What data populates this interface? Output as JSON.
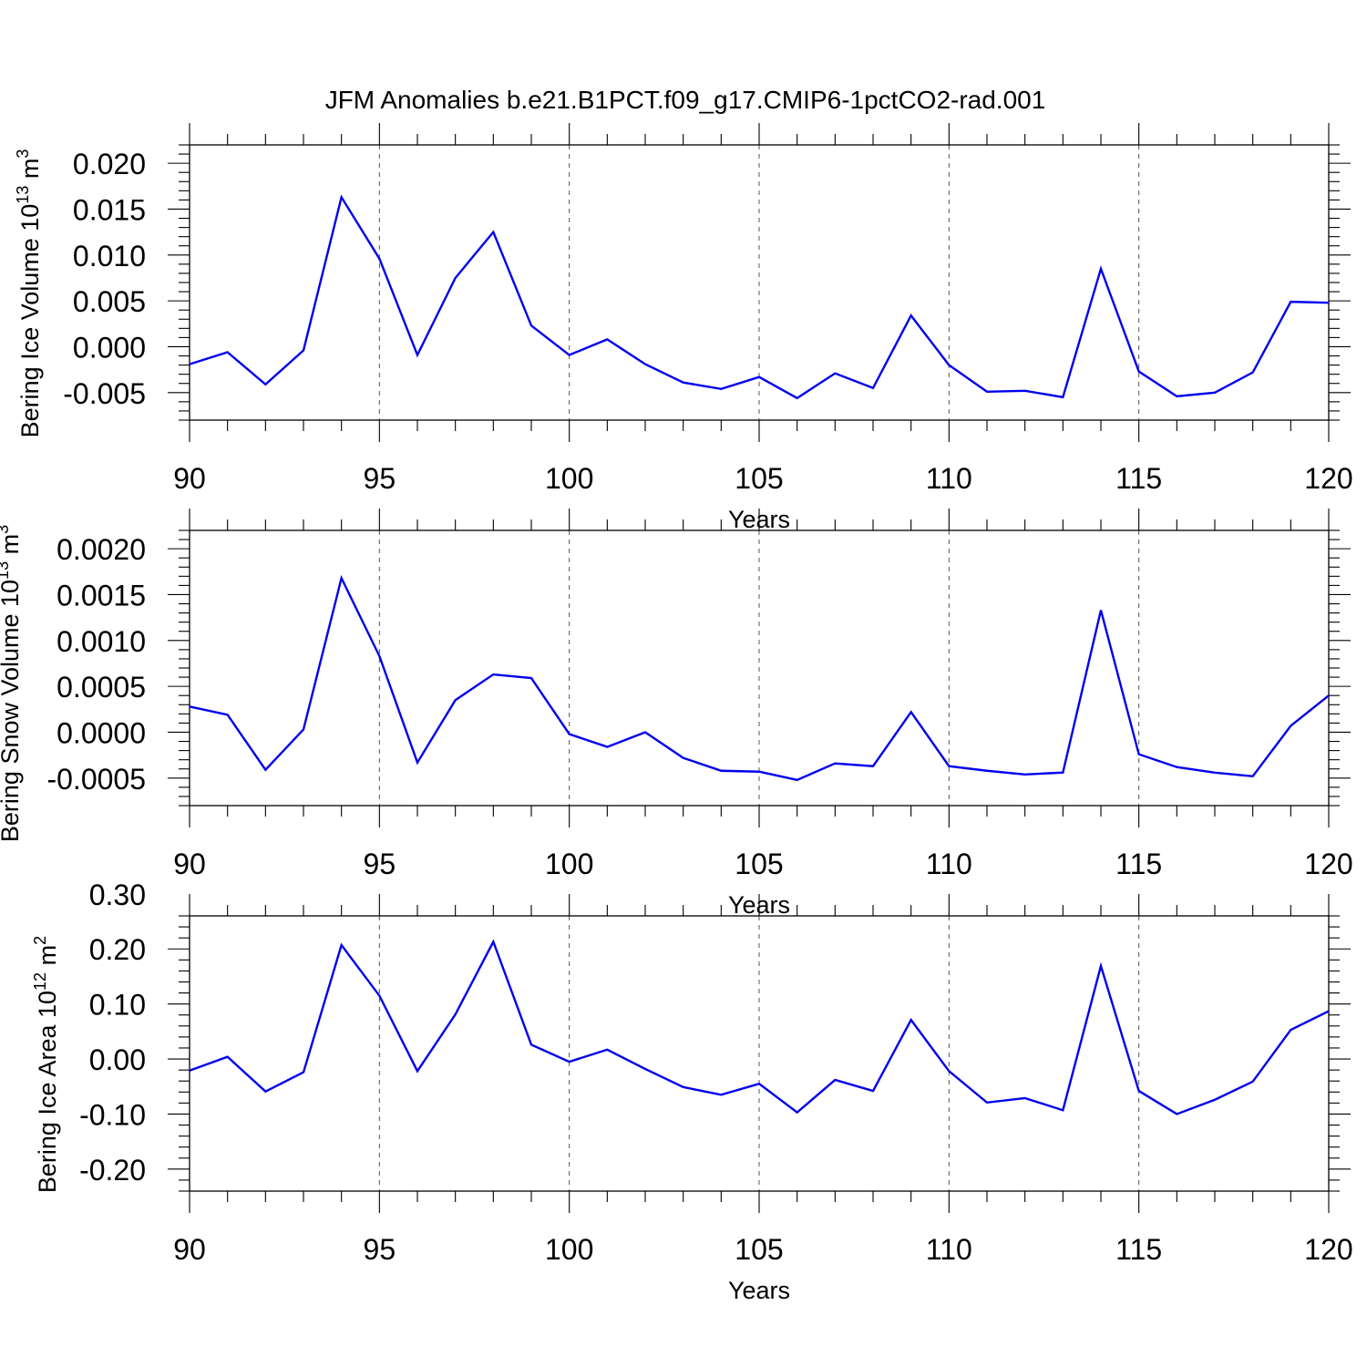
{
  "figure": {
    "title": "JFM Anomalies b.e21.B1PCT.f09_g17.CMIP6-1pctCO2-rad.001",
    "line_color": "#0000ee"
  },
  "chart_data": [
    {
      "type": "line",
      "ylabel": "Bering Ice Volume 10",
      "ylabel_exp": "13",
      "ylabel_unit": " m",
      "ylabel_unit_exp": "3",
      "xlabel": "Years",
      "xlim": [
        90,
        120
      ],
      "ylim": [
        -0.008,
        0.022
      ],
      "xticks": [
        90,
        95,
        100,
        105,
        110,
        115,
        120
      ],
      "xtick_labels": [
        "90",
        "95",
        "100",
        "105",
        "110",
        "115",
        "120"
      ],
      "yticks": [
        -0.005,
        0.0,
        0.005,
        0.01,
        0.015,
        0.02
      ],
      "ytick_labels": [
        "-0.005",
        "0.000",
        "0.005",
        "0.010",
        "0.015",
        "0.020"
      ],
      "grid": "dashed vertical at major x ticks",
      "x": [
        90,
        91,
        92,
        93,
        94,
        95,
        96,
        97,
        98,
        99,
        100,
        101,
        102,
        103,
        104,
        105,
        106,
        107,
        108,
        109,
        110,
        111,
        112,
        113,
        114,
        115,
        116,
        117,
        118,
        119,
        120
      ],
      "series": [
        {
          "values": [
            -0.0019,
            -0.0006,
            -0.0041,
            -0.0004,
            0.0163,
            0.0096,
            -0.0009,
            0.0075,
            0.0125,
            0.0023,
            -0.0009,
            0.0008,
            -0.0019,
            -0.0039,
            -0.0046,
            -0.0033,
            -0.0056,
            -0.0029,
            -0.0045,
            0.0034,
            -0.002,
            -0.0049,
            -0.0048,
            -0.0055,
            0.0085,
            -0.0027,
            -0.0054,
            -0.005,
            -0.0028,
            0.0049,
            0.0048
          ]
        }
      ]
    },
    {
      "type": "line",
      "ylabel": "Bering Snow Volume 10",
      "ylabel_exp": "13",
      "ylabel_unit": " m",
      "ylabel_unit_exp": "3",
      "xlabel": "Years",
      "xlim": [
        90,
        120
      ],
      "ylim": [
        -0.0008,
        0.0022
      ],
      "xticks": [
        90,
        95,
        100,
        105,
        110,
        115,
        120
      ],
      "xtick_labels": [
        "90",
        "95",
        "100",
        "105",
        "110",
        "115",
        "120"
      ],
      "yticks": [
        -0.0005,
        0.0,
        0.0005,
        0.001,
        0.0015,
        0.002
      ],
      "ytick_labels": [
        "-0.0005",
        "0.0000",
        "0.0005",
        "0.0010",
        "0.0015",
        "0.0020"
      ],
      "grid": "dashed vertical at major x ticks",
      "x": [
        90,
        91,
        92,
        93,
        94,
        95,
        96,
        97,
        98,
        99,
        100,
        101,
        102,
        103,
        104,
        105,
        106,
        107,
        108,
        109,
        110,
        111,
        112,
        113,
        114,
        115,
        116,
        117,
        118,
        119,
        120
      ],
      "series": [
        {
          "values": [
            0.00028,
            0.00019,
            -0.00041,
            3e-05,
            0.00168,
            0.00083,
            -0.00033,
            0.00035,
            0.00063,
            0.00059,
            -2e-05,
            -0.00016,
            0.0,
            -0.00028,
            -0.00042,
            -0.00043,
            -0.00052,
            -0.00034,
            -0.00037,
            0.00022,
            -0.00037,
            -0.00042,
            -0.00046,
            -0.00044,
            0.00133,
            -0.00024,
            -0.00038,
            -0.00044,
            -0.00048,
            7e-05,
            0.0004
          ]
        }
      ]
    },
    {
      "type": "line",
      "ylabel": "Bering Ice Area 10",
      "ylabel_exp": "12",
      "ylabel_unit": " m",
      "ylabel_unit_exp": "2",
      "xlabel": "Years",
      "xlim": [
        90,
        120
      ],
      "ylim": [
        -0.24,
        0.26
      ],
      "xticks": [
        90,
        95,
        100,
        105,
        110,
        115,
        120
      ],
      "xtick_labels": [
        "90",
        "95",
        "100",
        "105",
        "110",
        "115",
        "120"
      ],
      "yticks": [
        -0.2,
        -0.1,
        0.0,
        0.1,
        0.2,
        0.3
      ],
      "ytick_labels": [
        "-0.20",
        "-0.10",
        "0.00",
        "0.10",
        "0.20",
        "0.30"
      ],
      "grid": "dashed vertical at major x ticks",
      "x": [
        90,
        91,
        92,
        93,
        94,
        95,
        96,
        97,
        98,
        99,
        100,
        101,
        102,
        103,
        104,
        105,
        106,
        107,
        108,
        109,
        110,
        111,
        112,
        113,
        114,
        115,
        116,
        117,
        118,
        119,
        120
      ],
      "series": [
        {
          "values": [
            -0.021,
            0.004,
            -0.059,
            -0.024,
            0.207,
            0.115,
            -0.022,
            0.081,
            0.213,
            0.026,
            -0.005,
            0.017,
            -0.018,
            -0.051,
            -0.065,
            -0.045,
            -0.097,
            -0.038,
            -0.058,
            0.071,
            -0.022,
            -0.079,
            -0.071,
            -0.093,
            0.169,
            -0.058,
            -0.1,
            -0.074,
            -0.041,
            0.053,
            0.087
          ]
        }
      ]
    }
  ]
}
